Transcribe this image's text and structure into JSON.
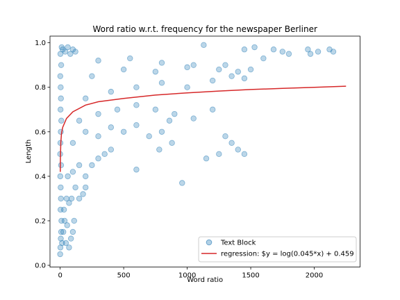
{
  "chart_data": {
    "type": "scatter",
    "title": "Word ratio w.r.t. frequency for the newspaper Berliner",
    "xlabel": "Word ratio",
    "ylabel": "Length",
    "xlim": [
      -80,
      2360
    ],
    "ylim": [
      -0.008,
      1.03
    ],
    "xticks": [
      0,
      500,
      1000,
      1500,
      2000
    ],
    "yticks": [
      0.0,
      0.2,
      0.4,
      0.6,
      0.8,
      1.0
    ],
    "xtick_labels": [
      "0",
      "500",
      "1000",
      "1500",
      "2000"
    ],
    "ytick_labels": [
      "0.0",
      "0.2",
      "0.4",
      "0.6",
      "0.8",
      "1.0"
    ],
    "grid": false,
    "legend_position": "bottom-right",
    "series": [
      {
        "name": "Text Block",
        "kind": "scatter",
        "color": "#1f77b4",
        "alpha": 0.3,
        "points": [
          [
            0,
            0.05
          ],
          [
            2,
            0.08
          ],
          [
            5,
            0.12
          ],
          [
            8,
            0.15
          ],
          [
            10,
            0.2
          ],
          [
            3,
            0.25
          ],
          [
            6,
            0.3
          ],
          [
            4,
            0.35
          ],
          [
            1,
            0.4
          ],
          [
            7,
            0.45
          ],
          [
            0,
            0.5
          ],
          [
            2,
            0.55
          ],
          [
            5,
            0.6
          ],
          [
            9,
            0.65
          ],
          [
            3,
            0.7
          ],
          [
            6,
            0.75
          ],
          [
            4,
            0.8
          ],
          [
            1,
            0.85
          ],
          [
            8,
            0.9
          ],
          [
            2,
            0.95
          ],
          [
            12,
            0.98
          ],
          [
            20,
            0.97
          ],
          [
            40,
            0.96
          ],
          [
            60,
            0.98
          ],
          [
            80,
            0.95
          ],
          [
            100,
            0.97
          ],
          [
            120,
            0.96
          ],
          [
            15,
            0.1
          ],
          [
            25,
            0.15
          ],
          [
            35,
            0.2
          ],
          [
            45,
            0.1
          ],
          [
            55,
            0.18
          ],
          [
            70,
            0.08
          ],
          [
            85,
            0.12
          ],
          [
            100,
            0.15
          ],
          [
            110,
            0.2
          ],
          [
            30,
            0.25
          ],
          [
            50,
            0.3
          ],
          [
            70,
            0.28
          ],
          [
            90,
            0.3
          ],
          [
            120,
            0.35
          ],
          [
            150,
            0.3
          ],
          [
            180,
            0.32
          ],
          [
            200,
            0.35
          ],
          [
            60,
            0.4
          ],
          [
            100,
            0.42
          ],
          [
            150,
            0.45
          ],
          [
            200,
            0.4
          ],
          [
            250,
            0.45
          ],
          [
            300,
            0.48
          ],
          [
            350,
            0.5
          ],
          [
            400,
            0.52
          ],
          [
            100,
            0.55
          ],
          [
            200,
            0.6
          ],
          [
            300,
            0.58
          ],
          [
            400,
            0.62
          ],
          [
            500,
            0.6
          ],
          [
            600,
            0.63
          ],
          [
            700,
            0.58
          ],
          [
            800,
            0.6
          ],
          [
            150,
            0.65
          ],
          [
            300,
            0.68
          ],
          [
            450,
            0.7
          ],
          [
            600,
            0.72
          ],
          [
            750,
            0.7
          ],
          [
            900,
            0.68
          ],
          [
            1050,
            0.66
          ],
          [
            1200,
            0.7
          ],
          [
            200,
            0.75
          ],
          [
            400,
            0.78
          ],
          [
            600,
            0.8
          ],
          [
            800,
            0.82
          ],
          [
            1000,
            0.8
          ],
          [
            1200,
            0.83
          ],
          [
            1350,
            0.85
          ],
          [
            1450,
            0.84
          ],
          [
            250,
            0.85
          ],
          [
            500,
            0.88
          ],
          [
            750,
            0.87
          ],
          [
            1000,
            0.89
          ],
          [
            1250,
            0.88
          ],
          [
            1400,
            0.87
          ],
          [
            1500,
            0.88
          ],
          [
            300,
            0.92
          ],
          [
            550,
            0.93
          ],
          [
            800,
            0.91
          ],
          [
            1050,
            0.9
          ],
          [
            1300,
            0.9
          ],
          [
            1600,
            0.93
          ],
          [
            1680,
            0.97
          ],
          [
            1750,
            0.96
          ],
          [
            1800,
            0.95
          ],
          [
            1950,
            0.97
          ],
          [
            1970,
            0.95
          ],
          [
            2030,
            0.96
          ],
          [
            2120,
            0.97
          ],
          [
            2150,
            0.96
          ],
          [
            1130,
            0.99
          ],
          [
            1450,
            0.97
          ],
          [
            1530,
            0.98
          ],
          [
            1300,
            0.58
          ],
          [
            1350,
            0.55
          ],
          [
            1400,
            0.52
          ],
          [
            1450,
            0.5
          ],
          [
            960,
            0.37
          ],
          [
            600,
            0.43
          ],
          [
            1150,
            0.48
          ],
          [
            1250,
            0.5
          ],
          [
            780,
            0.52
          ],
          [
            880,
            0.55
          ],
          [
            860,
            0.65
          ]
        ]
      },
      {
        "name": "regression: $y = log(0.045*x) + 0.459",
        "kind": "line",
        "color": "#d62728",
        "points": [
          [
            1,
            0.42
          ],
          [
            2,
            0.48
          ],
          [
            5,
            0.55
          ],
          [
            10,
            0.59
          ],
          [
            20,
            0.62
          ],
          [
            50,
            0.66
          ],
          [
            100,
            0.69
          ],
          [
            200,
            0.72
          ],
          [
            300,
            0.735
          ],
          [
            500,
            0.75
          ],
          [
            750,
            0.765
          ],
          [
            1000,
            0.775
          ],
          [
            1250,
            0.783
          ],
          [
            1500,
            0.79
          ],
          [
            1750,
            0.795
          ],
          [
            2000,
            0.8
          ],
          [
            2250,
            0.805
          ]
        ]
      }
    ]
  }
}
